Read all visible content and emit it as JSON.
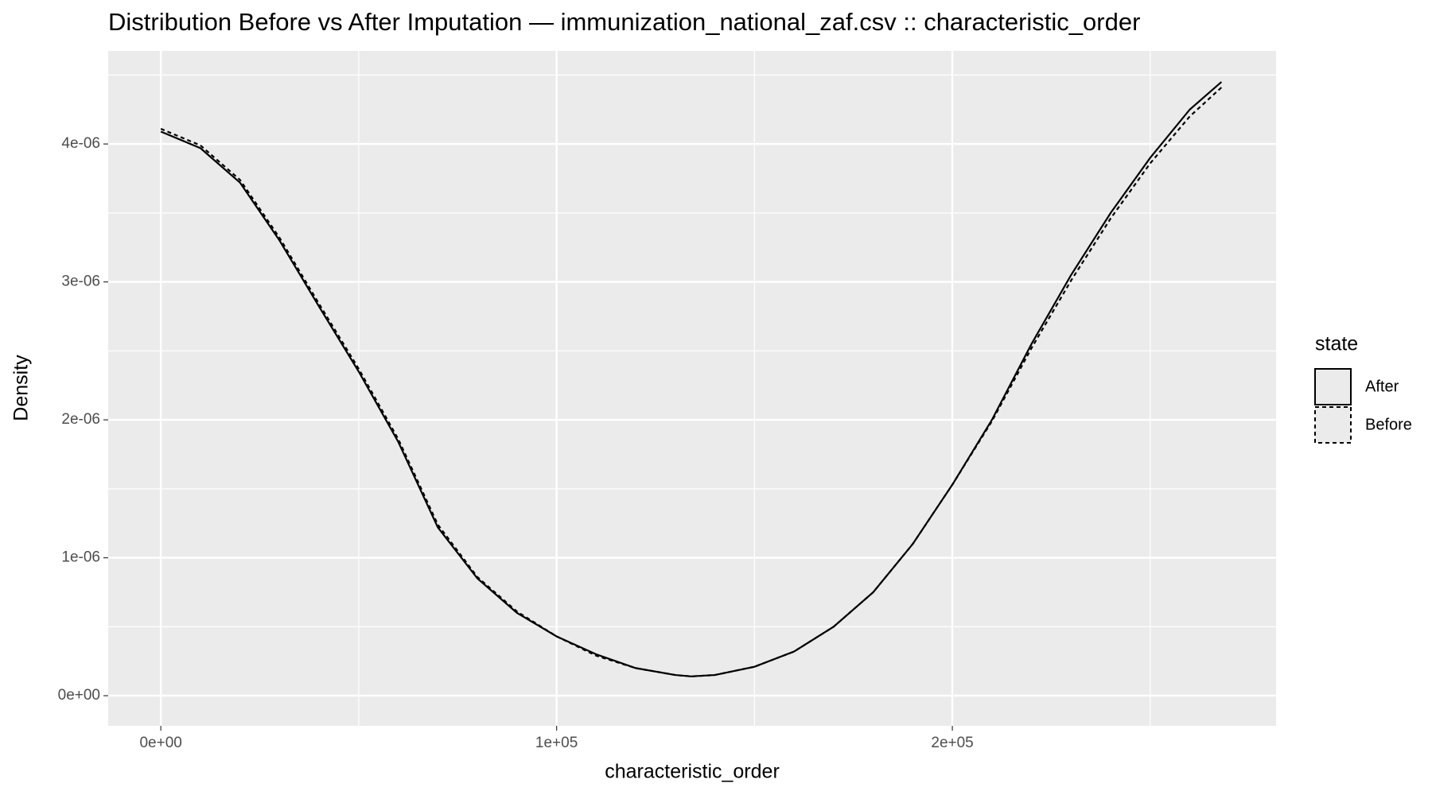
{
  "chart_data": {
    "type": "line",
    "title": "Distribution Before vs After Imputation — immunization_national_zaf.csv :: characteristic_order",
    "x_label": "characteristic_order",
    "y_label": "Density",
    "legend_title": "state",
    "legend_position": "right",
    "grid": true,
    "x": [
      0,
      10000,
      20000,
      30000,
      40000,
      50000,
      60000,
      70000,
      80000,
      90000,
      100000,
      110000,
      120000,
      130000,
      134000,
      140000,
      150000,
      160000,
      170000,
      180000,
      190000,
      200000,
      210000,
      220000,
      230000,
      240000,
      250000,
      260000,
      268000
    ],
    "series": [
      {
        "name": "After",
        "color": "#000000",
        "linetype": "solid",
        "values": [
          4.09e-06,
          3.97e-06,
          3.72e-06,
          3.3e-06,
          2.82e-06,
          2.35e-06,
          1.84e-06,
          1.22e-06,
          8.5e-07,
          6e-07,
          4.3e-07,
          3e-07,
          2e-07,
          1.5e-07,
          1.4e-07,
          1.5e-07,
          2.1e-07,
          3.2e-07,
          5e-07,
          7.5e-07,
          1.1e-06,
          1.53e-06,
          2e-06,
          2.55e-06,
          3.05e-06,
          3.5e-06,
          3.9e-06,
          4.25e-06,
          4.45e-06
        ]
      },
      {
        "name": "Before",
        "color": "#000000",
        "linetype": "dashed",
        "values": [
          4.11e-06,
          3.99e-06,
          3.74e-06,
          3.32e-06,
          2.84e-06,
          2.37e-06,
          1.86e-06,
          1.24e-06,
          8.6e-07,
          6.1e-07,
          4.3e-07,
          2.9e-07,
          2e-07,
          1.5e-07,
          1.4e-07,
          1.5e-07,
          2.1e-07,
          3.2e-07,
          5e-07,
          7.5e-07,
          1.1e-06,
          1.53e-06,
          1.99e-06,
          2.52e-06,
          3.01e-06,
          3.46e-06,
          3.86e-06,
          4.2e-06,
          4.41e-06
        ]
      }
    ],
    "xlim": [
      -13300,
      281800
    ],
    "ylim": [
      -2.185e-07,
      4.675e-06
    ],
    "xticks": [
      {
        "value": 0,
        "label": "0e+00"
      },
      {
        "value": 100000,
        "label": "1e+05"
      },
      {
        "value": 200000,
        "label": "2e+05"
      }
    ],
    "yticks": [
      {
        "value": 0,
        "label": "0e+00"
      },
      {
        "value": 1e-06,
        "label": "1e-06"
      },
      {
        "value": 2e-06,
        "label": "2e-06"
      },
      {
        "value": 3e-06,
        "label": "3e-06"
      },
      {
        "value": 4e-06,
        "label": "4e-06"
      }
    ],
    "x_minor_grid": [
      50000,
      150000,
      250000
    ],
    "y_minor_grid": [
      5e-07,
      1.5e-06,
      2.5e-06,
      3.5e-06,
      4.5e-06
    ]
  }
}
